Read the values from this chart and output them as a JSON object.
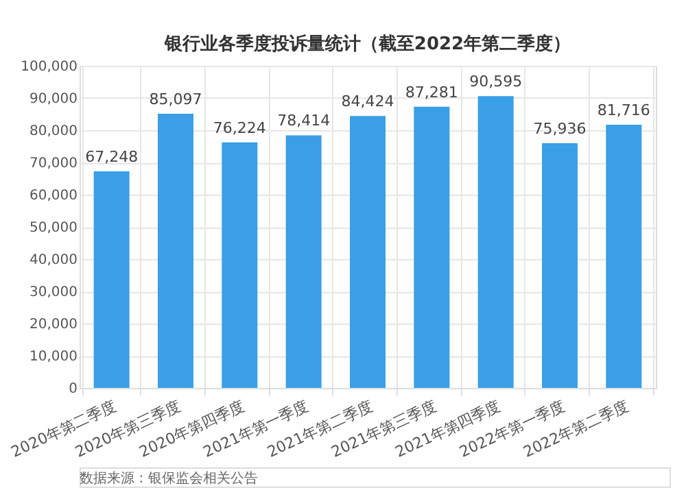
{
  "chart_data": {
    "type": "bar",
    "title": "银行业各季度投诉量统计（截至2022年第二季度）",
    "categories": [
      "2020年第二季度",
      "2020年第三季度",
      "2020年第四季度",
      "2021年第一季度",
      "2021年第二季度",
      "2021年第三季度",
      "2021年第四季度",
      "2022年第一季度",
      "2022年第二季度"
    ],
    "values": [
      67248,
      85097,
      76224,
      78414,
      84424,
      87281,
      90595,
      75936,
      81716
    ],
    "color": "#3a9fe6",
    "ylim": [
      0,
      100000
    ],
    "yticks": [
      {
        "value": 0,
        "label": "0"
      },
      {
        "value": 10000,
        "label": "10,000"
      },
      {
        "value": 20000,
        "label": "20,000"
      },
      {
        "value": 30000,
        "label": "30,000"
      },
      {
        "value": 40000,
        "label": "40,000"
      },
      {
        "value": 50000,
        "label": "50,000"
      },
      {
        "value": 60000,
        "label": "60,000"
      },
      {
        "value": 70000,
        "label": "70,000"
      },
      {
        "value": 80000,
        "label": "80,000"
      },
      {
        "value": 90000,
        "label": "90,000"
      },
      {
        "value": 100000,
        "label": "100,000"
      }
    ],
    "grid": true,
    "value_labels": [
      "67,248",
      "85,097",
      "76,224",
      "78,414",
      "84,424",
      "87,281",
      "90,595",
      "75,936",
      "81,716"
    ],
    "annotations": [
      "数据来源：银保监会相关公告"
    ]
  }
}
